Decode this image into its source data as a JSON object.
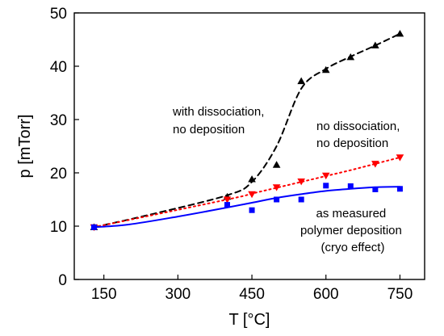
{
  "chart_data": {
    "type": "line",
    "xlabel": "T [°C]",
    "ylabel": "p [mTorr]",
    "xlim": [
      90,
      800
    ],
    "ylim": [
      0,
      50
    ],
    "xticks": [
      150,
      300,
      450,
      600,
      750
    ],
    "yticks": [
      0,
      10,
      20,
      30,
      40,
      50
    ],
    "grid": false,
    "annotations": [
      {
        "id": "dissociation",
        "lines": [
          "with dissociation,",
          "no deposition"
        ]
      },
      {
        "id": "no-dissociation",
        "lines": [
          "no dissociation,",
          "no deposition"
        ]
      },
      {
        "id": "measured",
        "lines": [
          "as measured",
          "polymer deposition",
          "(cryo effect)"
        ]
      }
    ],
    "series": [
      {
        "id": "dissociation",
        "color": "#000000",
        "marker": "triangle-up",
        "line_style": "dashed",
        "points": [
          [
            130,
            9.8
          ],
          [
            400,
            15.5
          ],
          [
            450,
            18.8
          ],
          [
            500,
            21.5
          ],
          [
            550,
            37.2
          ],
          [
            600,
            39.3
          ],
          [
            650,
            41.7
          ],
          [
            700,
            43.9
          ],
          [
            750,
            46.1
          ]
        ],
        "curve": [
          [
            130,
            9.8
          ],
          [
            250,
            12.3
          ],
          [
            400,
            15.8
          ],
          [
            450,
            18.3
          ],
          [
            500,
            25.0
          ],
          [
            550,
            35.8
          ],
          [
            600,
            39.5
          ],
          [
            650,
            41.8
          ],
          [
            700,
            43.9
          ],
          [
            750,
            46.1
          ]
        ]
      },
      {
        "id": "no-dissociation",
        "color": "#ff0000",
        "marker": "triangle-down",
        "line_style": "dotted",
        "points": [
          [
            130,
            9.8
          ],
          [
            400,
            15.0
          ],
          [
            450,
            16.0
          ],
          [
            500,
            17.3
          ],
          [
            550,
            18.4
          ],
          [
            600,
            19.5
          ],
          [
            700,
            21.7
          ],
          [
            750,
            22.9
          ]
        ],
        "curve": [
          [
            130,
            9.8
          ],
          [
            400,
            15.0
          ],
          [
            450,
            16.1
          ],
          [
            500,
            17.2
          ],
          [
            550,
            18.3
          ],
          [
            600,
            19.4
          ],
          [
            650,
            20.5
          ],
          [
            700,
            21.7
          ],
          [
            750,
            22.9
          ]
        ]
      },
      {
        "id": "measured",
        "color": "#0000ff",
        "marker": "square",
        "line_style": "solid",
        "points": [
          [
            130,
            9.8
          ],
          [
            400,
            14.0
          ],
          [
            450,
            13.0
          ],
          [
            500,
            15.0
          ],
          [
            550,
            15.0
          ],
          [
            600,
            17.6
          ],
          [
            650,
            17.5
          ],
          [
            700,
            16.9
          ],
          [
            750,
            17.0
          ]
        ],
        "curve": [
          [
            130,
            9.8
          ],
          [
            200,
            10.3
          ],
          [
            300,
            11.8
          ],
          [
            400,
            13.5
          ],
          [
            450,
            14.4
          ],
          [
            500,
            15.3
          ],
          [
            550,
            16.0
          ],
          [
            600,
            16.6
          ],
          [
            650,
            17.0
          ],
          [
            700,
            17.3
          ],
          [
            750,
            17.4
          ]
        ]
      }
    ]
  }
}
